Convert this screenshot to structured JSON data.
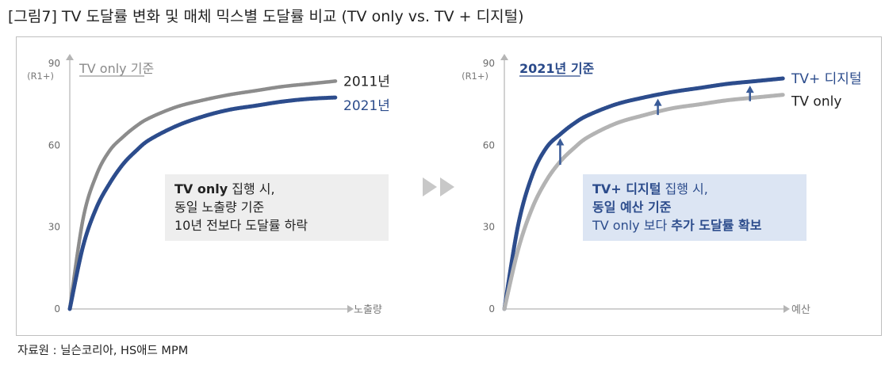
{
  "figure_title": "[그림7] TV 도달률 변화 및 매체 믹스별 도달률 비교 (TV only vs. TV + 디지털)",
  "source": "자료원 : 닐슨코리아, HS애드 MPM",
  "colors": {
    "gray_series": "#8c8c8c",
    "blue_series": "#2c4c8c",
    "light_gray_series": "#b3b3b3",
    "left_box": "#eeeeee",
    "right_box": "#dce5f3",
    "arrow": "#3a5c99",
    "play_icon": "#c8c8c8"
  },
  "icons": {
    "play_icon": "double-triangle-right"
  },
  "chart_data": [
    {
      "type": "line",
      "base_label": "TV only 기준",
      "y_unit": "(R1+)",
      "x_label": "노출량",
      "ylim": [
        0,
        90
      ],
      "y_ticks": [
        "0",
        "30",
        "60",
        "90"
      ],
      "grid": false,
      "series": [
        {
          "name": "2011년",
          "x": [
            0,
            0.05,
            0.1,
            0.15,
            0.2,
            0.25,
            0.3,
            0.4,
            0.5,
            0.6,
            0.7,
            0.8,
            0.9,
            1.0
          ],
          "values": [
            0,
            33,
            49,
            58,
            63,
            67,
            70,
            74,
            76.5,
            78.5,
            80,
            81.5,
            82.5,
            83.5
          ]
        },
        {
          "name": "2021년",
          "x": [
            0,
            0.05,
            0.1,
            0.15,
            0.2,
            0.25,
            0.3,
            0.4,
            0.5,
            0.6,
            0.7,
            0.8,
            0.9,
            1.0
          ],
          "values": [
            0,
            23,
            37,
            46,
            53,
            58,
            62,
            67,
            70.5,
            73,
            74.5,
            76,
            77,
            77.5
          ]
        }
      ],
      "callout": {
        "line1_bold": "TV only",
        "line1_rest": " 집행 시,",
        "line2": "동일 노출량 기준",
        "line3": "10년 전보다 도달률 하락"
      }
    },
    {
      "type": "line",
      "base_label": "2021년 기준",
      "y_unit": "(R1+)",
      "x_label": "예산",
      "ylim": [
        0,
        90
      ],
      "y_ticks": [
        "0",
        "30",
        "60",
        "90"
      ],
      "grid": false,
      "series": [
        {
          "name": "TV+ 디지털",
          "x": [
            0,
            0.05,
            0.1,
            0.15,
            0.2,
            0.25,
            0.3,
            0.4,
            0.5,
            0.6,
            0.7,
            0.8,
            0.9,
            1.0
          ],
          "values": [
            0,
            31,
            49,
            59,
            64,
            68,
            71,
            75,
            77.5,
            79.5,
            81,
            82.5,
            83.5,
            84.5
          ]
        },
        {
          "name": "TV only",
          "x": [
            0,
            0.05,
            0.1,
            0.15,
            0.2,
            0.25,
            0.3,
            0.4,
            0.5,
            0.6,
            0.7,
            0.8,
            0.9,
            1.0
          ],
          "values": [
            0,
            22,
            37,
            47,
            54,
            59,
            63,
            68,
            71,
            73.5,
            75,
            76.5,
            77.5,
            78.5
          ]
        }
      ],
      "callout": {
        "line1_bold": "TV+ 디지털",
        "line1_rest": " 집행 시,",
        "line2": "동일 예산 기준",
        "line3_rest": "TV only 보다 ",
        "line3_bold": "추가 도달률 확보"
      }
    }
  ]
}
